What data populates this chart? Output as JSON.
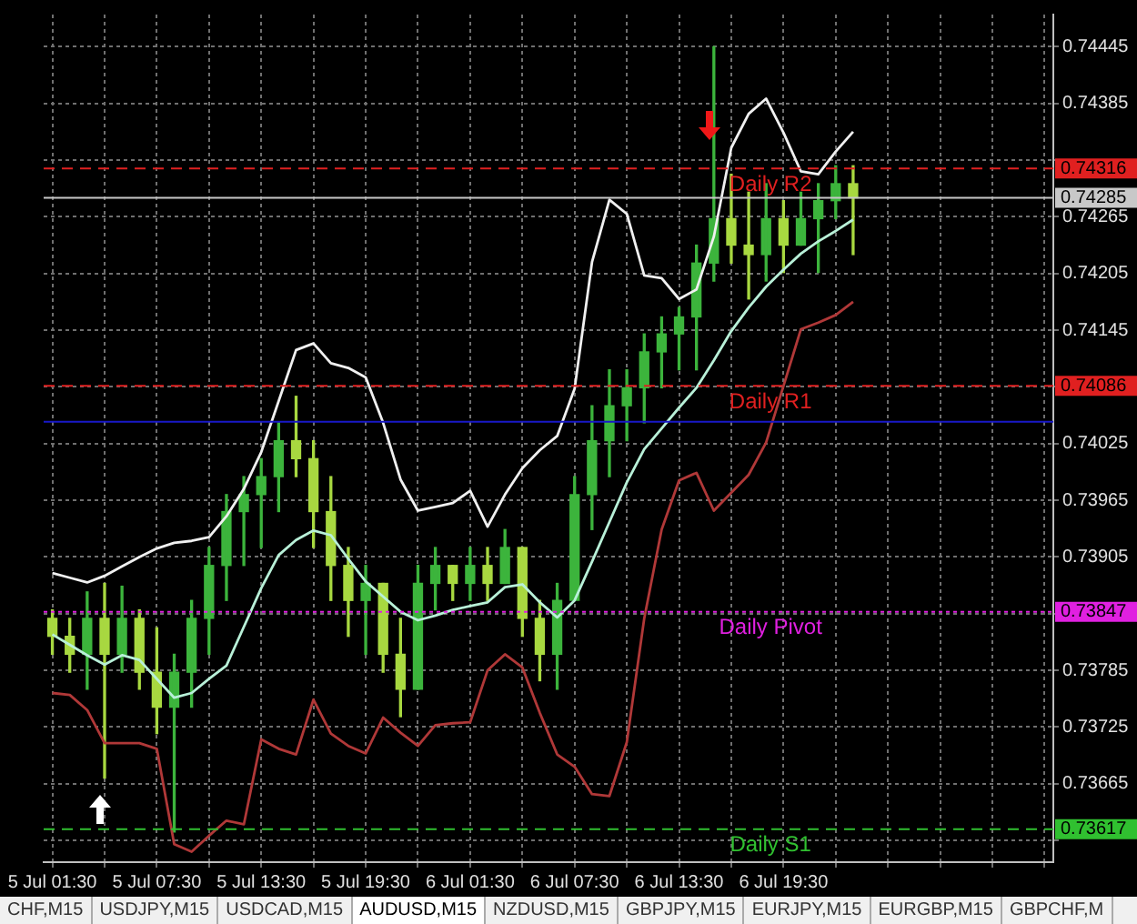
{
  "chart_data": {
    "type": "candlestick",
    "ylim": [
      0.73582,
      0.74479
    ],
    "categories": [
      "5 Jul 01:30",
      null,
      null,
      null,
      null,
      null,
      "5 Jul 07:30",
      null,
      null,
      null,
      null,
      null,
      "5 Jul 13:30",
      null,
      null,
      null,
      null,
      null,
      "5 Jul 19:30",
      null,
      null,
      null,
      null,
      null,
      "6 Jul 01:30",
      null,
      null,
      null,
      null,
      null,
      "6 Jul 07:30",
      null,
      null,
      null,
      null,
      null,
      "6 Jul 13:30",
      null,
      null,
      null,
      null,
      null,
      "6 Jul 19:30",
      null,
      null,
      null,
      null,
      null,
      null,
      null,
      null,
      null,
      null,
      null,
      null,
      null,
      null,
      null
    ],
    "yticks": [
      0.74445,
      0.74385,
      {
        "value": 0.74325,
        "label": null
      },
      0.74265,
      0.74205,
      0.74145,
      {
        "value": 0.74085,
        "label": null
      },
      0.74025,
      0.73965,
      0.73905,
      {
        "value": 0.73845,
        "label": null
      },
      0.73785,
      0.73725,
      0.73665,
      {
        "value": 0.73605,
        "label": null
      }
    ],
    "grid": true,
    "legend": false,
    "marker": "none",
    "series": [
      {
        "colors": [
          "#a8d840",
          "#a8d840",
          "#3cb43c",
          "#a8d840",
          "#3cb43c",
          "#a8d840",
          "#a8d840",
          "#3cb43c",
          "#3cb43c",
          "#3cb43c",
          "#3cb43c",
          "#3cb43c",
          "#3cb43c",
          "#3cb43c",
          "#a8d840",
          "#a8d840",
          "#a8d840",
          "#a8d840",
          "#3cb43c",
          "#a8d840",
          "#a8d840",
          "#3cb43c",
          "#3cb43c",
          "#a8d840",
          "#3cb43c",
          "#a8d840",
          "#3cb43c",
          "#a8d840",
          "#a8d840",
          "#3cb43c",
          "#3cb43c",
          "#3cb43c",
          "#3cb43c",
          "#3cb43c",
          "#3cb43c",
          "#3cb43c",
          "#3cb43c",
          "#3cb43c",
          "#3cb43c",
          "#a8d840",
          "#a8d840",
          "#3cb43c",
          "#a8d840",
          "#3cb43c",
          "#3cb43c",
          "#3cb43c",
          "#a8d840",
          null,
          null,
          null,
          null,
          null,
          null,
          null,
          null,
          null,
          null,
          null
        ],
        "ohlc": [
          [
            0.7384,
            0.73849,
            0.73802,
            0.73821
          ],
          [
            0.73821,
            0.7384,
            0.73783,
            0.73802
          ],
          [
            0.73802,
            0.73868,
            0.73765,
            0.7384
          ],
          [
            0.7384,
            0.73877,
            0.73671,
            0.73802
          ],
          [
            0.73802,
            0.73874,
            0.73783,
            0.7384
          ],
          [
            0.7384,
            0.73849,
            0.73765,
            0.73783
          ],
          [
            0.73783,
            0.7383,
            0.73718,
            0.73746
          ],
          [
            0.73746,
            0.73802,
            0.73614,
            0.73783
          ],
          [
            0.73783,
            0.73859,
            0.73746,
            0.7384
          ],
          [
            0.7384,
            0.73915,
            0.73802,
            0.73896
          ],
          [
            0.73896,
            0.73971,
            0.73859,
            0.73953
          ],
          [
            0.73953,
            0.7399,
            0.73896,
            0.73971
          ],
          [
            0.73971,
            0.74009,
            0.73915,
            0.7399
          ],
          [
            0.7399,
            0.74047,
            0.73953,
            0.74028
          ],
          [
            0.74028,
            0.74075,
            0.7399,
            0.74009
          ],
          [
            0.74009,
            0.74028,
            0.73915,
            0.73953
          ],
          [
            0.73953,
            0.7399,
            0.73859,
            0.73896
          ],
          [
            0.73896,
            0.73915,
            0.73821,
            0.73859
          ],
          [
            0.73859,
            0.73896,
            0.73802,
            0.73877
          ],
          [
            0.73877,
            0.73877,
            0.73783,
            0.73802
          ],
          [
            0.73802,
            0.7384,
            0.73736,
            0.73765
          ],
          [
            0.73765,
            0.73896,
            0.73765,
            0.73877
          ],
          [
            0.73877,
            0.73915,
            0.73849,
            0.73896
          ],
          [
            0.73896,
            0.73896,
            0.73859,
            0.73877
          ],
          [
            0.73877,
            0.73915,
            0.73859,
            0.73896
          ],
          [
            0.73896,
            0.73915,
            0.73859,
            0.73877
          ],
          [
            0.73877,
            0.73934,
            0.73877,
            0.73915
          ],
          [
            0.73915,
            0.73915,
            0.73821,
            0.7384
          ],
          [
            0.7384,
            0.73859,
            0.73774,
            0.73802
          ],
          [
            0.73802,
            0.73877,
            0.73765,
            0.73859
          ],
          [
            0.73859,
            0.7399,
            0.73859,
            0.73971
          ],
          [
            0.73971,
            0.74065,
            0.73934,
            0.74028
          ],
          [
            0.74028,
            0.74103,
            0.7399,
            0.74065
          ],
          [
            0.74065,
            0.74103,
            0.74028,
            0.74084
          ],
          [
            0.74084,
            0.74141,
            0.74047,
            0.74122
          ],
          [
            0.74122,
            0.74159,
            0.74084,
            0.74141
          ],
          [
            0.74141,
            0.74169,
            0.74103,
            0.74159
          ],
          [
            0.74159,
            0.74235,
            0.74103,
            0.74216
          ],
          [
            0.74216,
            0.74445,
            0.74197,
            0.74263
          ],
          [
            0.74263,
            0.7431,
            0.74216,
            0.74235
          ],
          [
            0.74235,
            0.74291,
            0.74178,
            0.74225
          ],
          [
            0.74225,
            0.743,
            0.74197,
            0.74263
          ],
          [
            0.74263,
            0.74282,
            0.74206,
            0.74235
          ],
          [
            0.74235,
            0.74291,
            0.74235,
            0.74263
          ],
          [
            0.74263,
            0.743,
            0.74206,
            0.74282
          ],
          [
            0.74282,
            0.74319,
            0.74263,
            0.743
          ],
          [
            0.743,
            0.74319,
            0.74225,
            0.74285
          ],
          null,
          null,
          null,
          null,
          null,
          null,
          null,
          null,
          null,
          null,
          null
        ]
      },
      {
        "type": "line",
        "color": "#f0f0f0",
        "values": [
          0.73888,
          0.73883,
          0.73878,
          0.73885,
          0.73895,
          0.73905,
          0.73914,
          0.7392,
          0.73922,
          0.73926,
          0.73948,
          0.73977,
          0.74016,
          0.7407,
          0.74124,
          0.74131,
          0.7411,
          0.74105,
          0.74095,
          0.74047,
          0.73987,
          0.73954,
          0.73958,
          0.73962,
          0.73975,
          0.73937,
          0.73971,
          0.73999,
          0.74018,
          0.74033,
          0.74083,
          0.74217,
          0.74283,
          0.74268,
          0.74203,
          0.742,
          0.74178,
          0.74188,
          0.74244,
          0.74338,
          0.74374,
          0.7439,
          0.74354,
          0.74313,
          0.7431,
          0.74334,
          0.74355,
          null,
          null,
          null,
          null,
          null,
          null,
          null,
          null,
          null,
          null,
          null
        ]
      },
      {
        "type": "line",
        "color": "#b8f0d8",
        "values": [
          0.73823,
          0.73812,
          0.73801,
          0.73791,
          0.73801,
          0.73796,
          0.73776,
          0.73756,
          0.73761,
          0.73776,
          0.7379,
          0.73831,
          0.73872,
          0.73907,
          0.73923,
          0.73933,
          0.73928,
          0.73903,
          0.73879,
          0.73863,
          0.73847,
          0.73838,
          0.73843,
          0.73849,
          0.73853,
          0.73857,
          0.73873,
          0.73876,
          0.73857,
          0.73841,
          0.73859,
          0.739,
          0.73942,
          0.73984,
          0.74019,
          0.74041,
          0.74063,
          0.74084,
          0.74113,
          0.74144,
          0.74169,
          0.74191,
          0.74209,
          0.74226,
          0.74239,
          0.7425,
          0.74262,
          null,
          null,
          null,
          null,
          null,
          null,
          null,
          null,
          null,
          null,
          null
        ]
      },
      {
        "type": "line",
        "color": "#b03838",
        "values": [
          0.73761,
          0.73759,
          0.73743,
          0.73708,
          0.73708,
          0.73708,
          0.73702,
          0.73601,
          0.73593,
          0.7361,
          0.73626,
          0.73622,
          0.73712,
          0.73702,
          0.73696,
          0.73754,
          0.73718,
          0.73705,
          0.73697,
          0.73735,
          0.73719,
          0.73705,
          0.73727,
          0.73729,
          0.7373,
          0.73785,
          0.73802,
          0.73788,
          0.7374,
          0.73696,
          0.73683,
          0.73654,
          0.73652,
          0.73709,
          0.7384,
          0.73934,
          0.73986,
          0.73994,
          0.73954,
          0.73973,
          0.73992,
          0.74026,
          0.74086,
          0.74146,
          0.74153,
          0.74161,
          0.74175,
          null,
          null,
          null,
          null,
          null,
          null,
          null,
          null,
          null,
          null,
          null
        ]
      }
    ],
    "ref_lines": [
      {
        "axis": "y",
        "value": 0.74316,
        "label": "Daily R2",
        "color": "#e02020",
        "line_style": "dashed"
      },
      {
        "axis": "y",
        "value": 0.74285,
        "label": null,
        "color": "#c8c8c8",
        "line_style": "solid"
      },
      {
        "axis": "y",
        "value": 0.74086,
        "label": "Daily R1",
        "color": "#e02020",
        "line_style": "dashed"
      },
      {
        "axis": "y",
        "value": 0.74048,
        "color": "#1818c8",
        "line_style": "solid"
      },
      {
        "axis": "y",
        "value": 0.73847,
        "label": "Daily Pivot",
        "color": "#e020e0",
        "line_style": "dotted"
      },
      {
        "axis": "y",
        "value": 0.73617,
        "label": "Daily S1",
        "color": "#30c030",
        "line_style": "dashed"
      }
    ],
    "annotations": [
      "0.74316",
      "0.74285",
      "0.74086",
      "0.73847",
      "0.73617",
      "CHF,M15",
      "USDJPY,M15",
      "USDCAD,M15",
      "AUDUSD,M15",
      "NZDUSD,M15",
      "GBPJPY,M15",
      "EURJPY,M15",
      "EURGBP,M15",
      "GBPCHF,M"
    ]
  }
}
